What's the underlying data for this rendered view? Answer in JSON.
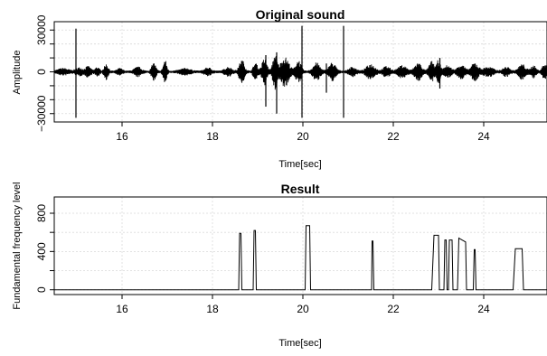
{
  "chart_data": [
    {
      "type": "line",
      "title": "Original sound",
      "xlabel": "Time[sec]",
      "ylabel": "Amplitude",
      "xlim": [
        14.5,
        25.4
      ],
      "ylim": [
        -36000,
        36000
      ],
      "xticks": [
        16,
        18,
        20,
        22,
        24
      ],
      "yticks": [
        -30000,
        -20000,
        -10000,
        0,
        10000,
        20000,
        30000
      ],
      "ytick_labels": [
        "−30000",
        "",
        "",
        "0",
        "",
        "",
        "30000"
      ],
      "grid": true,
      "bursts": [
        {
          "t": 14.7,
          "w": 0.3,
          "a": 2000
        },
        {
          "t": 15.05,
          "w": 0.2,
          "a": 2500
        },
        {
          "t": 15.25,
          "w": 0.15,
          "a": 3500
        },
        {
          "t": 15.45,
          "w": 0.12,
          "a": 3000
        },
        {
          "t": 15.65,
          "w": 0.12,
          "a": 5000
        },
        {
          "t": 15.95,
          "w": 0.15,
          "a": 2000
        },
        {
          "t": 16.35,
          "w": 0.2,
          "a": 3000
        },
        {
          "t": 16.7,
          "w": 0.12,
          "a": 6000
        },
        {
          "t": 16.95,
          "w": 0.1,
          "a": 8000
        },
        {
          "t": 17.4,
          "w": 0.3,
          "a": 2000
        },
        {
          "t": 17.9,
          "w": 0.2,
          "a": 2500
        },
        {
          "t": 18.35,
          "w": 0.2,
          "a": 3000
        },
        {
          "t": 18.65,
          "w": 0.15,
          "a": 8000
        },
        {
          "t": 18.95,
          "w": 0.12,
          "a": 6000
        },
        {
          "t": 19.15,
          "w": 0.15,
          "a": 9000
        },
        {
          "t": 19.38,
          "w": 0.12,
          "a": 12000
        },
        {
          "t": 19.6,
          "w": 0.25,
          "a": 10000
        },
        {
          "t": 19.9,
          "w": 0.15,
          "a": 8000
        },
        {
          "t": 20.3,
          "w": 0.2,
          "a": 6000
        },
        {
          "t": 20.65,
          "w": 0.2,
          "a": 6000
        },
        {
          "t": 21.1,
          "w": 0.2,
          "a": 3000
        },
        {
          "t": 21.5,
          "w": 0.25,
          "a": 5000
        },
        {
          "t": 21.85,
          "w": 0.2,
          "a": 3500
        },
        {
          "t": 22.2,
          "w": 0.25,
          "a": 4000
        },
        {
          "t": 22.55,
          "w": 0.2,
          "a": 6000
        },
        {
          "t": 22.85,
          "w": 0.15,
          "a": 7000
        },
        {
          "t": 23.0,
          "w": 0.1,
          "a": 8000
        },
        {
          "t": 23.2,
          "w": 0.2,
          "a": 4000
        },
        {
          "t": 23.5,
          "w": 0.2,
          "a": 5000
        },
        {
          "t": 23.8,
          "w": 0.2,
          "a": 6000
        },
        {
          "t": 24.1,
          "w": 0.3,
          "a": 3000
        },
        {
          "t": 24.5,
          "w": 0.2,
          "a": 3000
        },
        {
          "t": 24.85,
          "w": 0.2,
          "a": 5000
        },
        {
          "t": 25.1,
          "w": 0.15,
          "a": 4000
        },
        {
          "t": 25.35,
          "w": 0.15,
          "a": 5000
        }
      ],
      "spikes": [
        {
          "t": 14.98,
          "top": 31000,
          "bottom": -33000
        },
        {
          "t": 19.18,
          "top": 12000,
          "bottom": -25000
        },
        {
          "t": 19.42,
          "top": 14000,
          "bottom": -30000
        },
        {
          "t": 19.98,
          "top": 33000,
          "bottom": -33000
        },
        {
          "t": 20.52,
          "top": 6000,
          "bottom": -15000
        },
        {
          "t": 20.9,
          "top": 33000,
          "bottom": -33000
        },
        {
          "t": 23.03,
          "top": 10000,
          "bottom": -12000
        }
      ]
    },
    {
      "type": "line",
      "title": "Result",
      "xlabel": "Time[sec]",
      "ylabel": "Fundamental frequency level",
      "xlim": [
        14.5,
        25.4
      ],
      "ylim": [
        -50,
        970
      ],
      "xticks": [
        16,
        18,
        20,
        22,
        24
      ],
      "yticks": [
        0,
        200,
        400,
        600,
        800
      ],
      "ytick_labels": [
        "0",
        "",
        "400",
        "",
        "800"
      ],
      "grid": true,
      "x": [
        14.5,
        18.58,
        18.6,
        18.63,
        18.65,
        18.9,
        18.92,
        18.95,
        18.97,
        20.05,
        20.07,
        20.15,
        20.17,
        21.52,
        21.53,
        21.55,
        21.57,
        22.85,
        22.9,
        23.0,
        23.02,
        23.12,
        23.14,
        23.17,
        23.19,
        23.22,
        23.24,
        23.3,
        23.32,
        23.42,
        23.45,
        23.52,
        23.6,
        23.62,
        23.77,
        23.79,
        23.81,
        23.83,
        24.65,
        24.7,
        24.85,
        24.88,
        25.4
      ],
      "y": [
        0,
        0,
        590,
        590,
        0,
        0,
        620,
        620,
        0,
        0,
        670,
        670,
        0,
        0,
        510,
        510,
        0,
        0,
        570,
        570,
        0,
        0,
        520,
        520,
        0,
        0,
        520,
        520,
        0,
        0,
        540,
        520,
        500,
        0,
        0,
        420,
        420,
        0,
        0,
        430,
        430,
        0,
        0
      ]
    }
  ]
}
